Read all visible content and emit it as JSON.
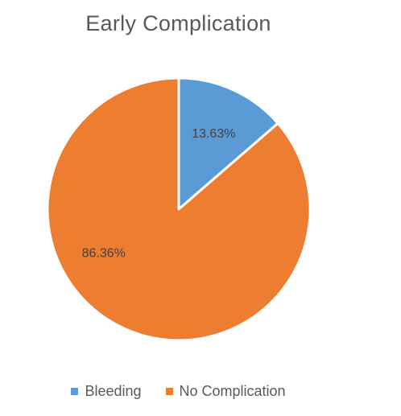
{
  "chart_data": {
    "type": "pie",
    "title": "Early Complication",
    "series": [
      {
        "name": "Bleeding",
        "value": 13.63,
        "label": "13.63%",
        "color": "#5B9BD5"
      },
      {
        "name": "No Complication",
        "value": 86.36,
        "label": "86.36%",
        "color": "#ED7D31"
      }
    ],
    "legend_position": "bottom",
    "start_angle": "12 o'clock, clockwise"
  }
}
